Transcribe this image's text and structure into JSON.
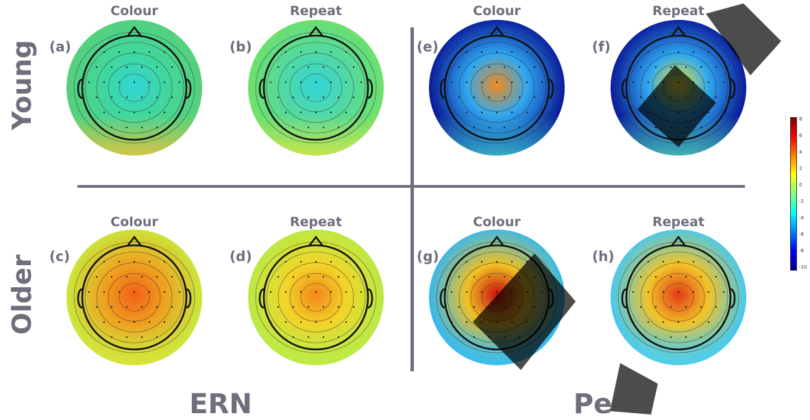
{
  "columns": {
    "c1": "Colour",
    "c2": "Repeat",
    "c3": "Colour",
    "c4": "Repeat",
    "c5": "Colour",
    "c6": "Repeat",
    "c7": "Colour",
    "c8": "Repeat"
  },
  "rows": {
    "young": "Young",
    "older": "Older"
  },
  "components": {
    "ern": "ERN",
    "pe": "Pe"
  },
  "panels": [
    {
      "label": "(a)",
      "group": "ERN",
      "age": "Young",
      "condition": "Colour"
    },
    {
      "label": "(b)",
      "group": "ERN",
      "age": "Young",
      "condition": "Repeat"
    },
    {
      "label": "(c)",
      "group": "ERN",
      "age": "Older",
      "condition": "Colour"
    },
    {
      "label": "(d)",
      "group": "ERN",
      "age": "Older",
      "condition": "Repeat"
    },
    {
      "label": "(e)",
      "group": "Pe",
      "age": "Young",
      "condition": "Colour"
    },
    {
      "label": "(f)",
      "group": "Pe",
      "age": "Young",
      "condition": "Repeat"
    },
    {
      "label": "(g)",
      "group": "Pe",
      "age": "Older",
      "condition": "Colour"
    },
    {
      "label": "(h)",
      "group": "Pe",
      "age": "Older",
      "condition": "Repeat"
    }
  ],
  "colorbar": {
    "ticks": [
      "8",
      "6",
      "4",
      "2",
      "0",
      "-2",
      "-4",
      "-6",
      "-8",
      "-10"
    ],
    "colors": [
      "#7f0000",
      "#ff0000",
      "#ff8000",
      "#ffff00",
      "#80ff80",
      "#00ffff",
      "#0080ff",
      "#0000ff",
      "#00008f"
    ]
  },
  "maps": [
    {
      "outer": "#57d07a",
      "mid": "#3fd7a0",
      "center": "#32d6d6",
      "bottom": "#f3c23a"
    },
    {
      "outer": "#6fe06a",
      "mid": "#4fd8a8",
      "center": "#33d5d8",
      "bottom": "#d8e64a"
    },
    {
      "outer": "#c8e83c",
      "mid": "#f0a020",
      "center": "#f06018",
      "bottom": "#d8e23a"
    },
    {
      "outer": "#b8ea46",
      "mid": "#f3d428",
      "center": "#f2861c",
      "bottom": "#c2ea44"
    },
    {
      "outer": "#0a1a9a",
      "mid": "#2fa8f0",
      "center": "#f28b1e",
      "bottom": "#3fd0d0"
    },
    {
      "outer": "#0a1a9a",
      "mid": "#2fa8f0",
      "center": "#f0e62a",
      "bottom": "#4fdcb8"
    },
    {
      "outer": "#35b8f0",
      "mid": "#f0c022",
      "center": "#cc1010",
      "bottom": "#40c0e8"
    },
    {
      "outer": "#45c8f0",
      "mid": "#f2c428",
      "center": "#e43818",
      "bottom": "#58d0e4"
    }
  ]
}
